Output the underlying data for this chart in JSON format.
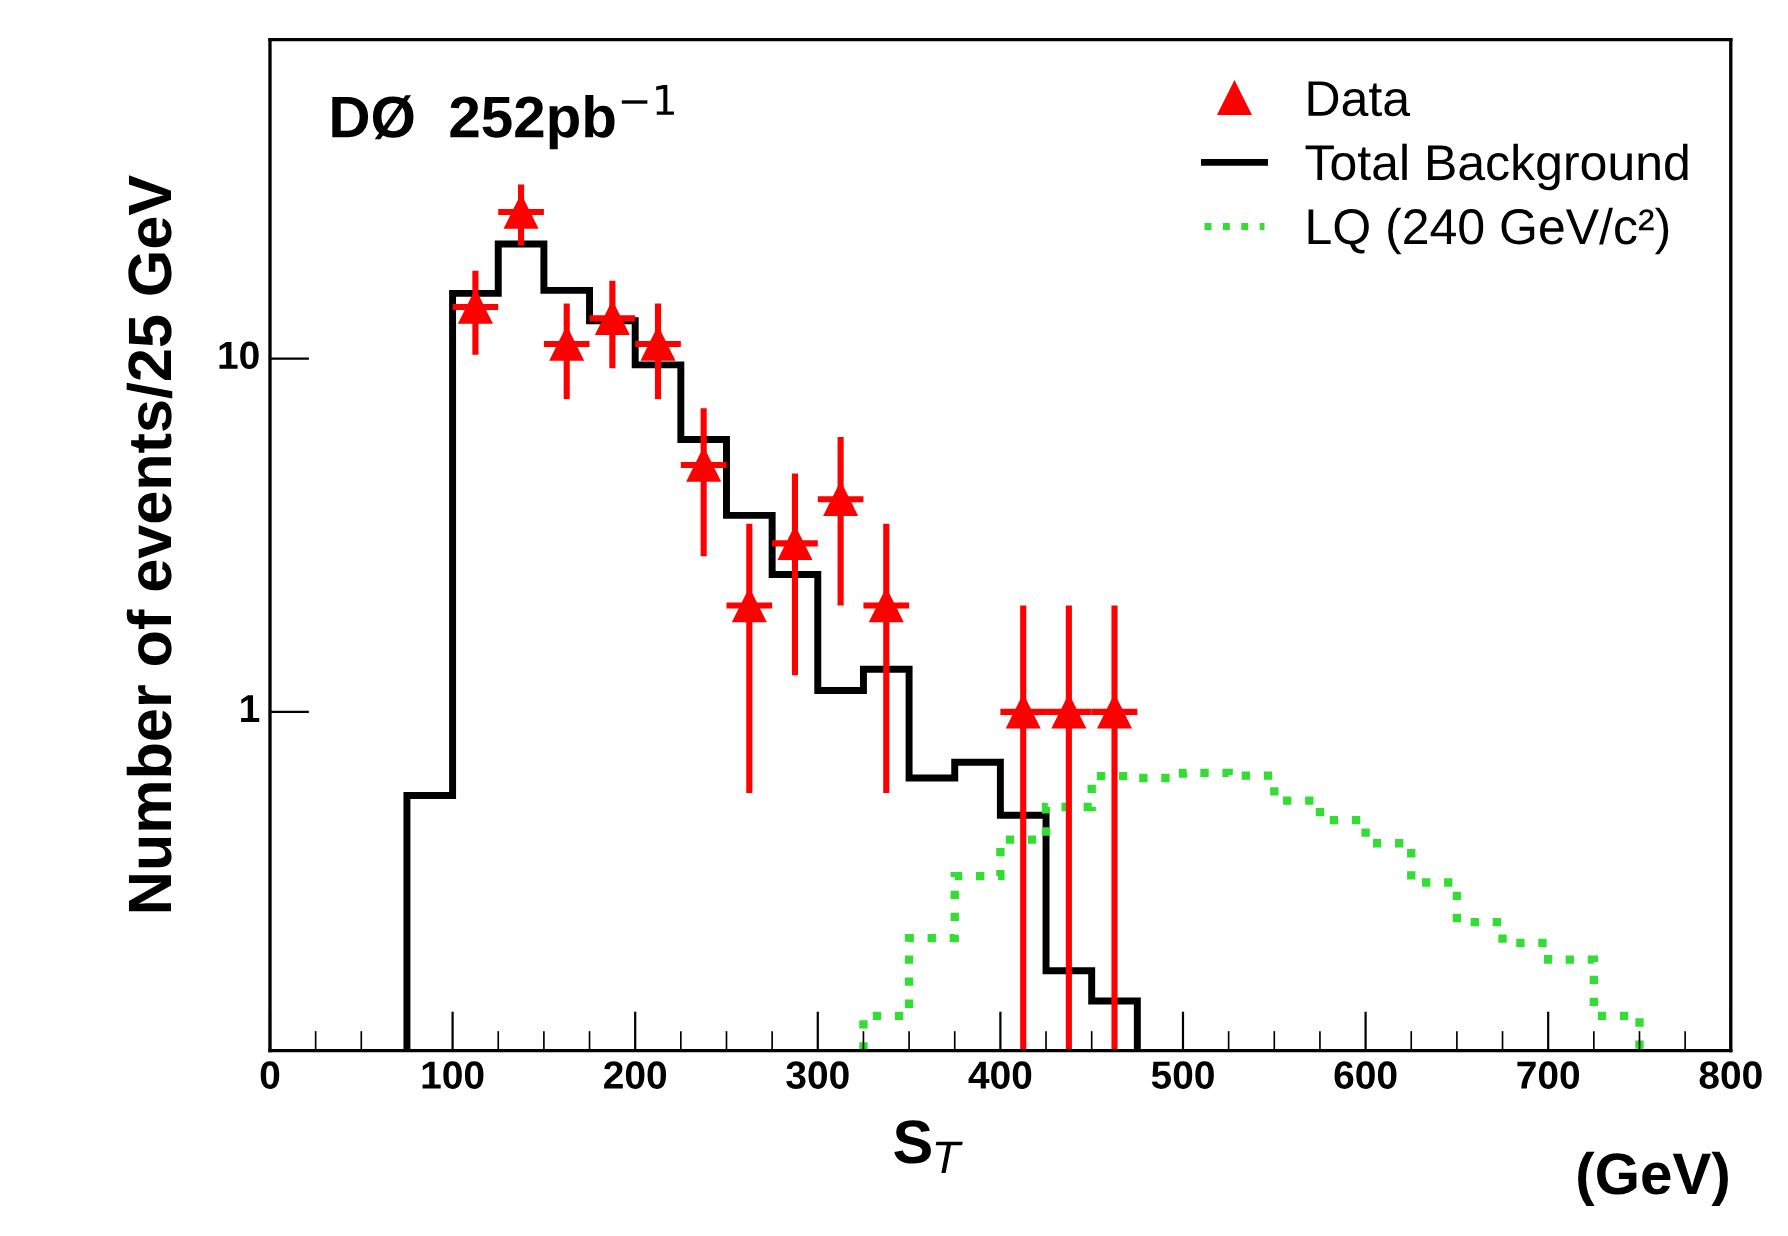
{
  "chart_data": {
    "type": "histogram",
    "xlabel": "S$_{T}$",
    "ylabel": "Number of events/25 GeV",
    "annotations": [
      "DØ  252pb$^{−1}$",
      "(GeV)"
    ],
    "xlim": [
      0,
      800
    ],
    "xticks": [
      0,
      100,
      200,
      300,
      400,
      500,
      600,
      700,
      800
    ],
    "ylim": [
      0.11,
      80
    ],
    "yticks": [
      1,
      10
    ],
    "log": "y",
    "grid": false,
    "legend": "top right",
    "series": [
      {
        "name": "Data",
        "type": "scatter",
        "color": "#ff0000",
        "marker": "triangle",
        "x": [
          112.5,
          137.5,
          162.5,
          187.5,
          212.5,
          237.5,
          262.5,
          287.5,
          312.5,
          337.5,
          412.5,
          437.5,
          462.5
        ],
        "values": [
          14,
          26,
          11,
          13,
          11,
          5,
          2,
          3,
          4,
          2,
          1,
          1,
          1
        ],
        "errors": [
          3.74,
          5.1,
          3.32,
          3.61,
          3.32,
          2.24,
          1.41,
          1.73,
          2,
          1.41,
          [
            0.11,
            2
          ],
          [
            0.11,
            2
          ],
          [
            0.11,
            2
          ]
        ],
        "xerrors": [
          12.5,
          12.5,
          12.5,
          12.5,
          12.5,
          12.5,
          12.5,
          12.5,
          12.5,
          12.5,
          12.5,
          12.5,
          12.5
        ]
      },
      {
        "name": "Total Background",
        "type": "histogram",
        "color": "#000000",
        "line_style": "solid",
        "bins": [
          75,
          100,
          125,
          150,
          175,
          200,
          225,
          250,
          275,
          300,
          325,
          350,
          375,
          400,
          425,
          450,
          475
        ],
        "values": [
          0.58,
          15.3,
          21.1,
          15.6,
          12.8,
          9.6,
          5.9,
          3.6,
          2.45,
          1.15,
          1.32,
          0.65,
          0.72,
          0.51,
          0.185,
          0.152
        ]
      },
      {
        "name": "LQ (240 GeV/c²)",
        "type": "histogram",
        "color": "#33dd33",
        "line_style": "dotted",
        "bins": [
          325,
          350,
          375,
          400,
          425,
          450,
          475,
          500,
          525,
          550,
          575,
          600,
          625,
          650,
          675,
          700,
          725,
          750
        ],
        "values": [
          0.138,
          0.229,
          0.343,
          0.435,
          0.538,
          0.658,
          0.65,
          0.672,
          0.66,
          0.561,
          0.494,
          0.425,
          0.329,
          0.254,
          0.222,
          0.199,
          0.138
        ]
      }
    ]
  }
}
